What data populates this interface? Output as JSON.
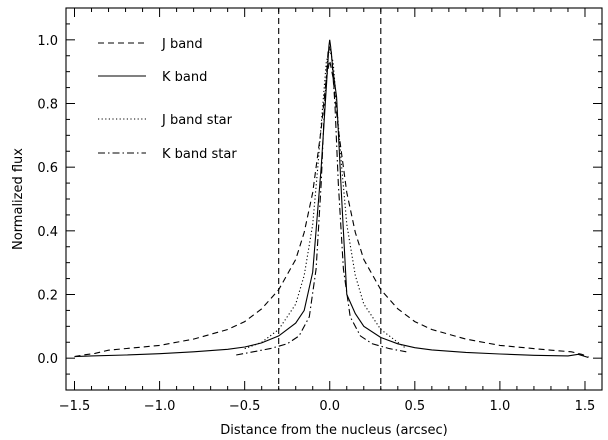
{
  "chart_data": {
    "type": "line",
    "xlabel": "Distance from the nucleus (arcsec)",
    "ylabel": "Normalized flux",
    "xlim": [
      -1.55,
      1.6
    ],
    "ylim": [
      -0.1,
      1.1
    ],
    "x_ticks": [
      "−1.5",
      "−1.0",
      "−0.5",
      "0.0",
      "0.5",
      "1.0",
      "1.5"
    ],
    "x_tick_values": [
      -1.5,
      -1.0,
      -0.5,
      0.0,
      0.5,
      1.0,
      1.5
    ],
    "y_ticks": [
      "0.0",
      "0.2",
      "0.4",
      "0.6",
      "0.8",
      "1.0"
    ],
    "y_tick_values": [
      0.0,
      0.2,
      0.4,
      0.6,
      0.8,
      1.0
    ],
    "legend_position": "top-left",
    "vertical_lines": [
      -0.3,
      0.3
    ],
    "series": [
      {
        "name": "J band",
        "dash": "dashed",
        "x": [
          -1.5,
          -1.45,
          -1.38,
          -1.3,
          -1.0,
          -0.8,
          -0.6,
          -0.5,
          -0.4,
          -0.3,
          -0.2,
          -0.15,
          -0.1,
          -0.05,
          -0.02,
          0.0,
          0.02,
          0.05,
          0.1,
          0.15,
          0.2,
          0.3,
          0.4,
          0.5,
          0.6,
          0.8,
          1.0,
          1.3,
          1.42,
          1.48,
          1.52
        ],
        "y": [
          0.005,
          0.01,
          0.015,
          0.025,
          0.04,
          0.06,
          0.09,
          0.115,
          0.155,
          0.215,
          0.31,
          0.395,
          0.52,
          0.72,
          0.88,
          0.935,
          0.88,
          0.72,
          0.52,
          0.395,
          0.31,
          0.215,
          0.155,
          0.115,
          0.09,
          0.06,
          0.04,
          0.025,
          0.02,
          0.012,
          0.005
        ]
      },
      {
        "name": "K band",
        "dash": "solid",
        "x": [
          -1.5,
          -1.4,
          -1.2,
          -1.0,
          -0.8,
          -0.6,
          -0.5,
          -0.4,
          -0.3,
          -0.2,
          -0.15,
          -0.1,
          -0.05,
          -0.02,
          -0.005,
          0.0,
          0.005,
          0.02,
          0.04,
          0.07,
          0.1,
          0.15,
          0.2,
          0.3,
          0.4,
          0.5,
          0.6,
          0.8,
          1.0,
          1.2,
          1.4,
          1.46,
          1.52
        ],
        "y": [
          0.005,
          0.007,
          0.01,
          0.014,
          0.02,
          0.028,
          0.035,
          0.048,
          0.07,
          0.11,
          0.15,
          0.27,
          0.6,
          0.85,
          0.98,
          1.0,
          0.98,
          0.9,
          0.82,
          0.5,
          0.2,
          0.14,
          0.1,
          0.065,
          0.045,
          0.033,
          0.026,
          0.018,
          0.013,
          0.009,
          0.007,
          0.012,
          0.002
        ]
      },
      {
        "name": "J band star",
        "dash": "dotted",
        "x": [
          -0.5,
          -0.4,
          -0.3,
          -0.2,
          -0.15,
          -0.1,
          -0.07,
          -0.04,
          -0.02,
          0.0,
          0.02,
          0.04,
          0.07,
          0.1,
          0.15,
          0.2,
          0.3,
          0.4,
          0.45
        ],
        "y": [
          0.03,
          0.05,
          0.09,
          0.17,
          0.26,
          0.42,
          0.6,
          0.8,
          0.93,
          0.97,
          0.93,
          0.8,
          0.6,
          0.42,
          0.26,
          0.17,
          0.09,
          0.05,
          0.03
        ]
      },
      {
        "name": "K band star",
        "dash": "dashdot",
        "x": [
          -0.55,
          -0.45,
          -0.35,
          -0.25,
          -0.18,
          -0.12,
          -0.08,
          -0.05,
          -0.03,
          -0.01,
          0.0,
          0.01,
          0.03,
          0.05,
          0.08,
          0.12,
          0.18,
          0.25,
          0.35,
          0.45
        ],
        "y": [
          0.01,
          0.02,
          0.03,
          0.045,
          0.07,
          0.13,
          0.28,
          0.55,
          0.8,
          0.96,
          0.98,
          0.96,
          0.8,
          0.55,
          0.28,
          0.13,
          0.07,
          0.045,
          0.03,
          0.02
        ]
      }
    ]
  }
}
